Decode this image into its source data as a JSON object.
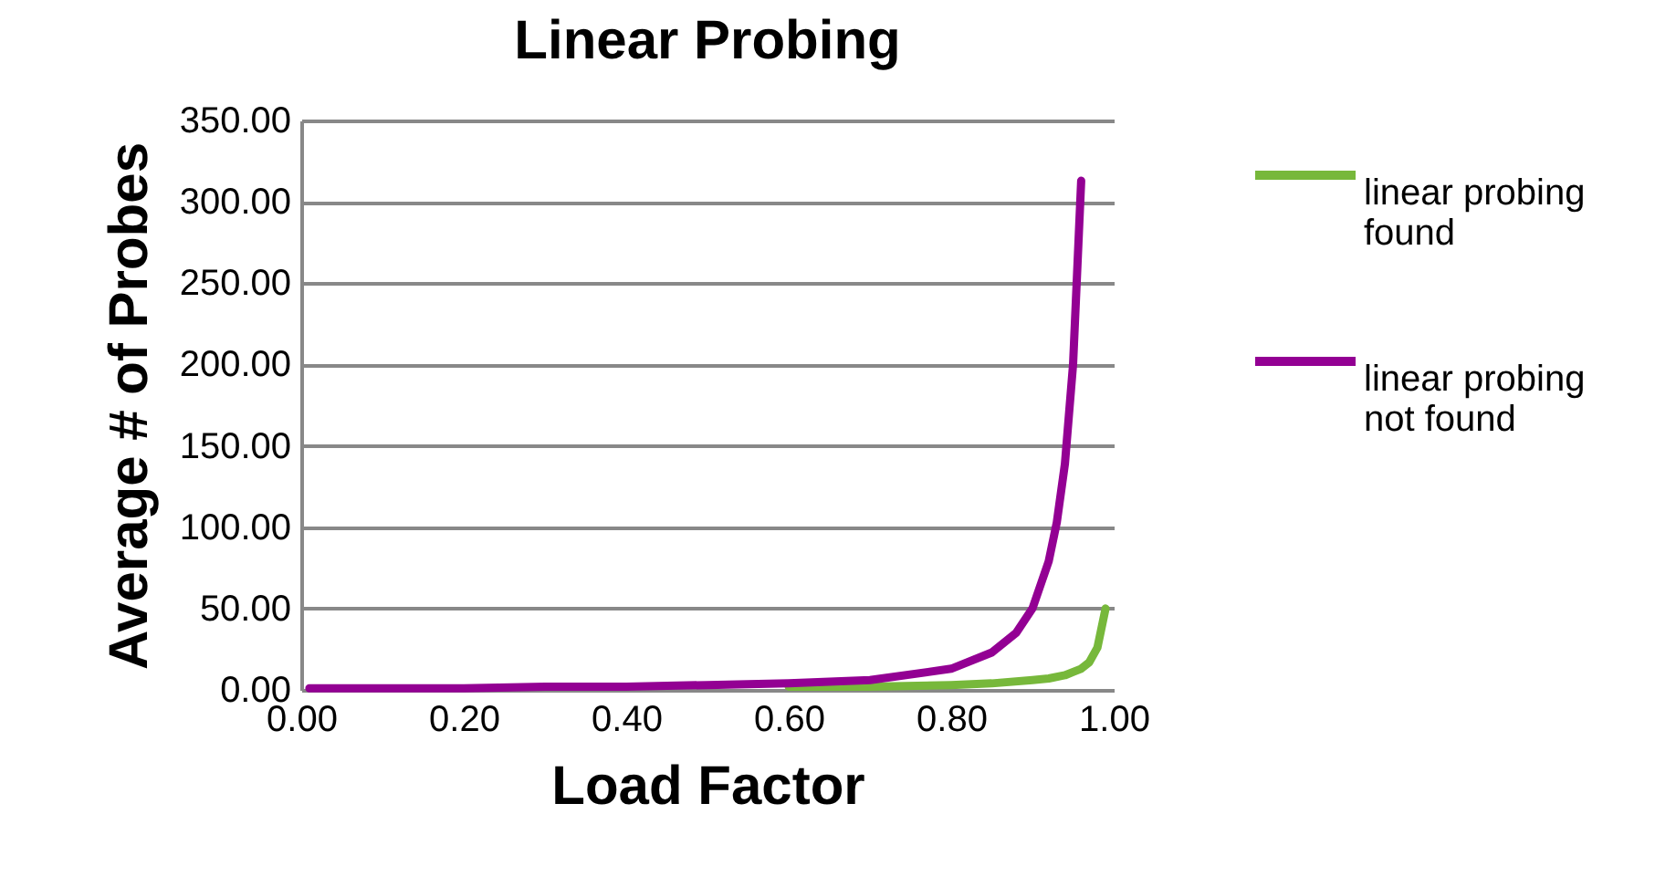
{
  "chart_data": {
    "type": "line",
    "title": "Linear Probing",
    "xlabel": "Load Factor",
    "ylabel": "Average # of Probes",
    "xlim": [
      0,
      1
    ],
    "ylim": [
      0,
      350
    ],
    "xticks": [
      {
        "value": 0,
        "label": "0.00"
      },
      {
        "value": 0.2,
        "label": "0.20"
      },
      {
        "value": 0.4,
        "label": "0.40"
      },
      {
        "value": 0.6,
        "label": "0.60"
      },
      {
        "value": 0.8,
        "label": "0.80"
      },
      {
        "value": 1,
        "label": "1.00"
      }
    ],
    "yticks": [
      {
        "value": 0,
        "label": "0.00"
      },
      {
        "value": 50,
        "label": "50.00"
      },
      {
        "value": 100,
        "label": "100.00"
      },
      {
        "value": 150,
        "label": "150.00"
      },
      {
        "value": 200,
        "label": "200.00"
      },
      {
        "value": 250,
        "label": "250.00"
      },
      {
        "value": 300,
        "label": "300.00"
      },
      {
        "value": 350,
        "label": "350.00"
      }
    ],
    "grid": "y",
    "legend": "right",
    "marker": "none",
    "line_style": "solid",
    "series": [
      {
        "name": "linear probing found",
        "color": "#77b83b",
        "x": [
          0.6,
          0.7,
          0.8,
          0.85,
          0.9,
          0.92,
          0.94,
          0.95,
          0.96,
          0.97,
          0.98,
          0.99
        ],
        "values": [
          2,
          2,
          3,
          4,
          6,
          7,
          9,
          11,
          13,
          17,
          26,
          50
        ]
      },
      {
        "name": "linear probing not found",
        "color": "#930093",
        "x": [
          0.01,
          0.1,
          0.2,
          0.3,
          0.4,
          0.5,
          0.6,
          0.7,
          0.8,
          0.85,
          0.88,
          0.9,
          0.92,
          0.93,
          0.94,
          0.95,
          0.96
        ],
        "values": [
          1,
          1,
          1,
          2,
          2,
          3,
          4,
          6,
          13,
          23,
          35,
          50,
          79,
          103,
          139,
          200,
          313
        ]
      }
    ]
  }
}
